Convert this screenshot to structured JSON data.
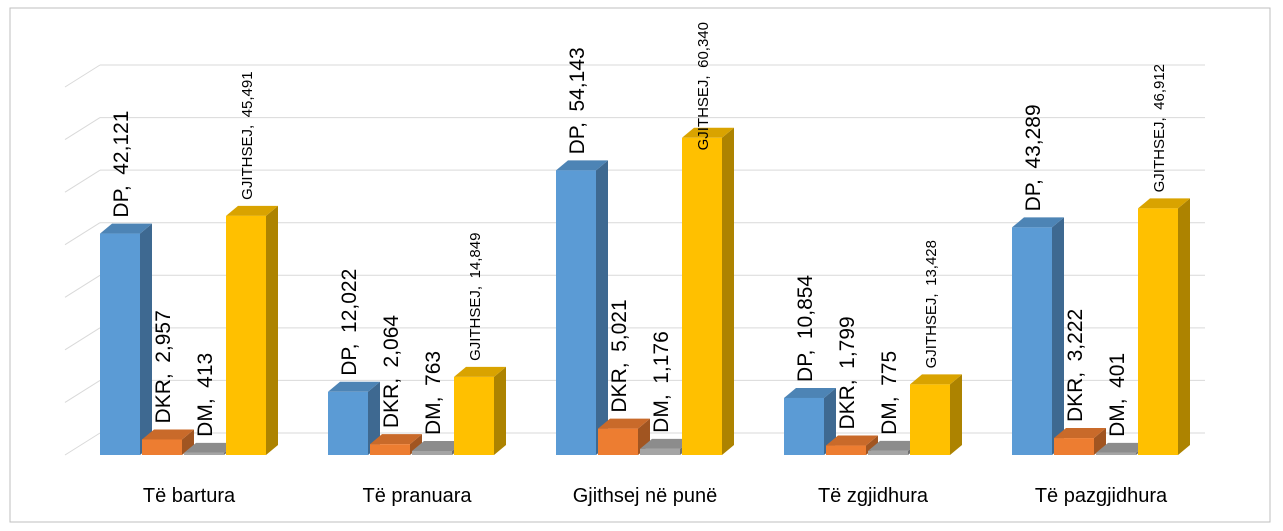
{
  "chart_data": {
    "type": "bar3d",
    "categories": [
      "Të bartura",
      "Të pranuara",
      "Gjithsej në punë",
      "Të zgjidhura",
      "Të pazgjidhura"
    ],
    "series": [
      {
        "name": "DP",
        "color": "#5b9bd5",
        "values": [
          42121,
          12022,
          54143,
          10854,
          43289
        ],
        "value_labels": [
          "42,121",
          "12,022",
          "54,143",
          "10,854",
          "43,289"
        ]
      },
      {
        "name": "DKR",
        "color": "#ed7d31",
        "values": [
          2957,
          2064,
          5021,
          1799,
          3222
        ],
        "value_labels": [
          "2,957",
          "2,064",
          "5,021",
          "1,799",
          "3,222"
        ]
      },
      {
        "name": "DM",
        "color": "#a5a5a5",
        "values": [
          413,
          763,
          1176,
          775,
          401
        ],
        "value_labels": [
          "413",
          "763",
          "1,176",
          "775",
          "401"
        ]
      },
      {
        "name": "GJITHSEJ",
        "color": "#ffc000",
        "values": [
          45491,
          14849,
          60340,
          13428,
          46912
        ],
        "value_labels": [
          "45,491",
          "14,849",
          "60,340",
          "13,428",
          "46,912"
        ]
      }
    ],
    "ylim": [
      0,
      70000
    ],
    "yticks": [
      0,
      10000,
      20000,
      30000,
      40000,
      50000,
      60000,
      70000
    ],
    "grid": true
  }
}
